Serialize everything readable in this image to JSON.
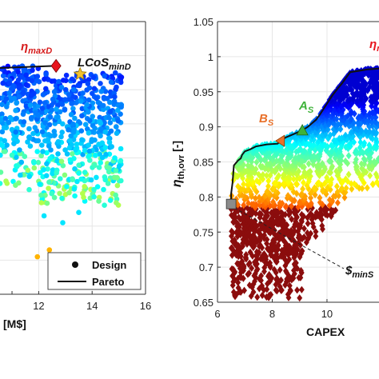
{
  "chart_data": [
    {
      "type": "scatter",
      "title": "",
      "xlabel": "[M$]",
      "ylabel": "",
      "xlim": [
        10.55,
        16
      ],
      "ylim": [
        0.65,
        1.05
      ],
      "x_ticks": [
        "12",
        "14",
        "16"
      ],
      "grid": true,
      "legend": {
        "position": "bottom-right",
        "entries": [
          "Design",
          "Pareto"
        ]
      },
      "series": [
        {
          "name": "Design",
          "marker": "circle",
          "colormap": "jet",
          "clusters": [
            {
              "x_range": [
                10.55,
                15.1
              ],
              "y_range": [
                0.76,
                0.985
              ],
              "note": "dense cloud of designs"
            }
          ],
          "points": [
            [
              12.4,
              0.715
            ],
            [
              11.95,
              0.705
            ],
            [
              12.9,
              0.755
            ],
            [
              13.5,
              0.77
            ],
            [
              12.2,
              0.765
            ]
          ]
        },
        {
          "name": "Pareto",
          "line": [
            [
              10.55,
              0.982
            ],
            [
              12.6,
              0.985
            ]
          ]
        }
      ],
      "annotations": [
        {
          "label_main": "η",
          "label_sub": "maxD",
          "x": 12.65,
          "y": 0.985,
          "marker": "diamond",
          "color": "#e8141c"
        },
        {
          "label_main": "LCoS",
          "label_sub": "minD",
          "x": 13.55,
          "y": 0.973,
          "marker": "star",
          "color": "#f2c230"
        }
      ]
    },
    {
      "type": "scatter",
      "title": "",
      "xlabel": "CAPEX",
      "ylabel_main": "η",
      "ylabel_sub": "th,ovr",
      "ylabel_unit": " [-]",
      "xlim": [
        6,
        11.9
      ],
      "ylim": [
        0.65,
        1.05
      ],
      "x_ticks": [
        "6",
        "8",
        "10"
      ],
      "y_ticks": [
        "0.65",
        "0.7",
        "0.75",
        "0.8",
        "0.85",
        "0.9",
        "0.95",
        "1",
        "1.05"
      ],
      "grid": true,
      "series": [
        {
          "name": "Design",
          "marker": "diamond",
          "colormap": "jet",
          "clusters": [
            {
              "x_range": [
                6.5,
                11.9
              ],
              "y_range": [
                0.655,
                0.985
              ],
              "note": "color from efficiency (red low, blue high)"
            }
          ]
        },
        {
          "name": "Pareto",
          "line": [
            [
              6.5,
              0.79
            ],
            [
              6.5,
              0.805
            ],
            [
              6.55,
              0.82
            ],
            [
              6.6,
              0.845
            ],
            [
              6.75,
              0.852
            ],
            [
              6.85,
              0.855
            ],
            [
              6.9,
              0.86
            ],
            [
              7.0,
              0.865
            ],
            [
              7.2,
              0.868
            ],
            [
              7.4,
              0.872
            ],
            [
              7.8,
              0.875
            ],
            [
              8.2,
              0.876
            ],
            [
              8.3,
              0.88
            ],
            [
              8.5,
              0.885
            ],
            [
              8.8,
              0.89
            ],
            [
              9.1,
              0.895
            ],
            [
              9.3,
              0.9
            ],
            [
              9.45,
              0.905
            ],
            [
              9.6,
              0.91
            ],
            [
              9.75,
              0.918
            ],
            [
              9.95,
              0.93
            ],
            [
              10.2,
              0.945
            ],
            [
              10.4,
              0.955
            ],
            [
              10.55,
              0.962
            ],
            [
              10.7,
              0.97
            ],
            [
              10.85,
              0.978
            ],
            [
              11.2,
              0.98
            ],
            [
              11.5,
              0.982
            ],
            [
              11.9,
              0.983
            ]
          ]
        }
      ],
      "annotations": [
        {
          "label_main": "B",
          "label_sub": "S",
          "x": 8.3,
          "y": 0.88,
          "marker": "triangle-left",
          "color": "#e8702a"
        },
        {
          "label_main": "A",
          "label_sub": "S",
          "x": 9.1,
          "y": 0.894,
          "marker": "triangle-up",
          "color": "#3fb23a"
        },
        {
          "label_main": "$",
          "label_sub": "minS",
          "x": 6.5,
          "y": 0.79,
          "marker": "square",
          "color": "#8c8c8c"
        },
        {
          "label_main": "η",
          "label_sub": "max",
          "x": 11.8,
          "y": 0.988,
          "marker": "none",
          "color": "#e8141c"
        }
      ]
    }
  ]
}
